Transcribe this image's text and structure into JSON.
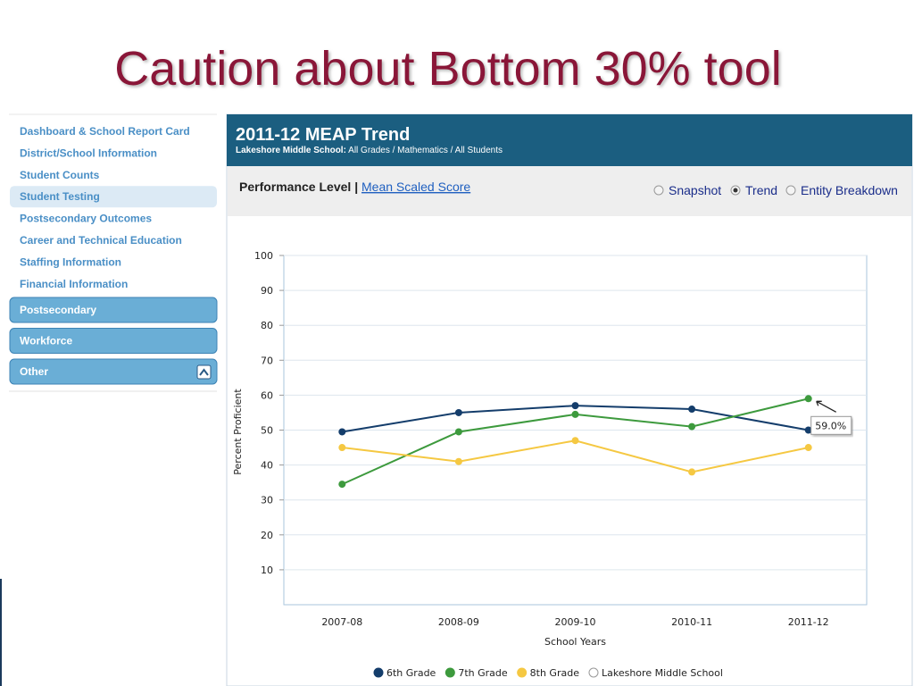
{
  "slide_title": "Caution about Bottom 30% tool",
  "sidebar": {
    "links": [
      {
        "label": "Dashboard & School Report Card"
      },
      {
        "label": "District/School Information"
      },
      {
        "label": "Student Counts"
      },
      {
        "label": "Student Testing",
        "selected": true
      },
      {
        "label": "Postsecondary Outcomes"
      },
      {
        "label": "Career and Technical Education"
      },
      {
        "label": "Staffing Information"
      },
      {
        "label": "Financial Information"
      }
    ],
    "sections": [
      "Postsecondary",
      "Workforce",
      "Other"
    ]
  },
  "panel": {
    "title": "2011-12 MEAP Trend",
    "school": "Lakeshore Middle School:",
    "filters": "All Grades / Mathematics / All Students",
    "tab_active": "Performance Level",
    "separator": "|",
    "tab_link": "Mean Scaled Score",
    "views": [
      {
        "label": "Snapshot"
      },
      {
        "label": "Trend",
        "checked": true
      },
      {
        "label": "Entity Breakdown"
      }
    ]
  },
  "chart_data": {
    "type": "line",
    "x_label": "School Years",
    "y_label": "Percent Proficient",
    "categories": [
      "2007-08",
      "2008-09",
      "2009-10",
      "2010-11",
      "2011-12"
    ],
    "series": [
      {
        "name": "6th Grade",
        "color": "#143d6b",
        "values": [
          49.5,
          55,
          57,
          56,
          50
        ]
      },
      {
        "name": "7th Grade",
        "color": "#3d9a3d",
        "values": [
          34.5,
          49.5,
          54.5,
          51,
          59
        ],
        "value_labels": [
          null,
          null,
          null,
          null,
          "59.0%"
        ]
      },
      {
        "name": "8th Grade",
        "color": "#f5c842",
        "values": [
          45,
          41,
          47,
          38,
          45
        ]
      },
      {
        "name": "Lakeshore Middle School",
        "color": "#ffffff",
        "values": [
          null,
          null,
          null,
          null,
          null
        ]
      }
    ],
    "ylim": [
      0,
      100
    ],
    "yticks": [
      10,
      20,
      30,
      40,
      50,
      60,
      70,
      80,
      90,
      100
    ],
    "grid": true
  }
}
